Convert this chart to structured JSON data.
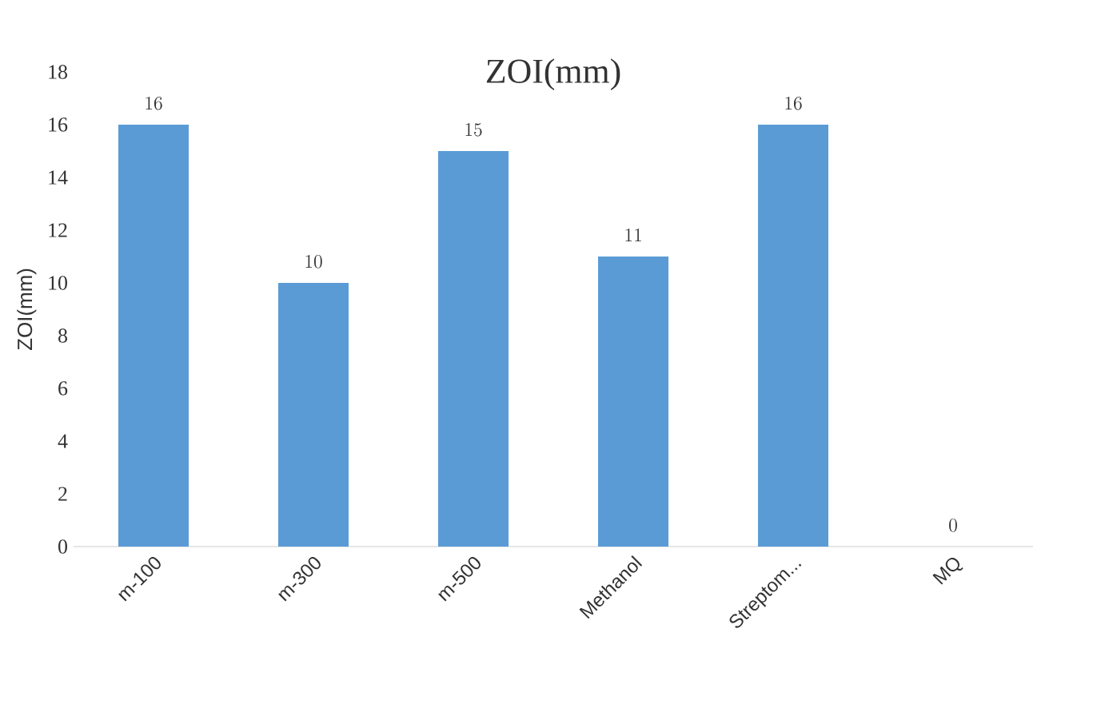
{
  "chart_data": {
    "type": "bar",
    "title": "ZOI(mm)",
    "ylabel": "ZOI(mm)",
    "categories": [
      "m-100",
      "m-300",
      "m-500",
      "Methanol",
      "Streptom...",
      "MQ"
    ],
    "values": [
      16,
      10,
      15,
      11,
      16,
      0
    ],
    "color": "#5b9bd5",
    "ylim": [
      0,
      18
    ],
    "yticks": [
      0,
      2,
      4,
      6,
      8,
      10,
      12,
      14,
      16,
      18
    ],
    "data_labels": true
  }
}
